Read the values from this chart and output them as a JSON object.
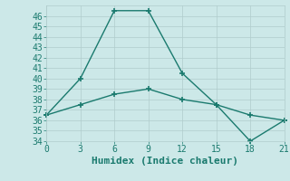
{
  "xlabel": "Humidex (Indice chaleur)",
  "ylabel": "",
  "background_color": "#cce8e8",
  "line_color": "#1a7a6e",
  "series1_x": [
    0,
    3,
    6,
    9,
    12,
    15,
    18,
    21
  ],
  "series1_y": [
    36.5,
    40,
    46.5,
    46.5,
    40.5,
    37.5,
    34,
    36
  ],
  "series2_x": [
    0,
    3,
    6,
    9,
    12,
    15,
    18,
    21
  ],
  "series2_y": [
    36.5,
    37.5,
    38.5,
    39,
    38,
    37.5,
    36.5,
    36
  ],
  "xlim": [
    0,
    21
  ],
  "ylim": [
    34,
    47
  ],
  "xticks": [
    0,
    3,
    6,
    9,
    12,
    15,
    18,
    21
  ],
  "yticks": [
    34,
    35,
    36,
    37,
    38,
    39,
    40,
    41,
    42,
    43,
    44,
    45,
    46
  ],
  "grid_color": "#b0cccc",
  "font_color": "#1a7a6e",
  "marker": "+",
  "linewidth": 1.0,
  "markersize": 5,
  "tick_fontsize": 7,
  "xlabel_fontsize": 8
}
